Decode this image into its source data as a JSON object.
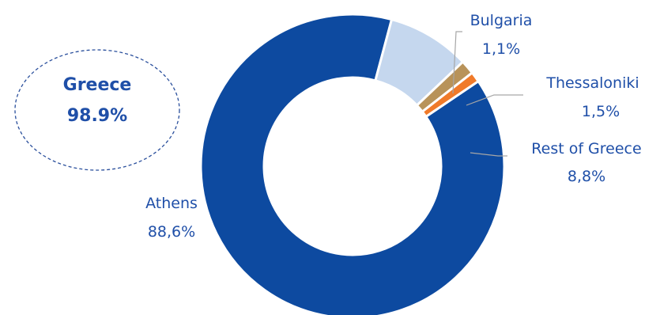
{
  "chart_data": {
    "type": "donut",
    "slices": [
      {
        "name": "Athens",
        "value": 88.6,
        "label": "88,6%",
        "color": "#0d4aa0"
      },
      {
        "name": "Rest of Greece",
        "value": 8.8,
        "label": "8,8%",
        "color": "#c5d7ee"
      },
      {
        "name": "Thessaloniki",
        "value": 1.5,
        "label": "1,5%",
        "color": "#b8935a"
      },
      {
        "name": "Bulgaria",
        "value": 1.1,
        "label": "1,1%",
        "color": "#f07a2a"
      }
    ],
    "start_angle_deg": 56,
    "legend": "none",
    "callout": {
      "line1": "Greece",
      "line2": "98.9%",
      "color": "#1f4fa8"
    },
    "label_color": "#1f4fa8",
    "leader_line_color": "#a6a6a6"
  }
}
